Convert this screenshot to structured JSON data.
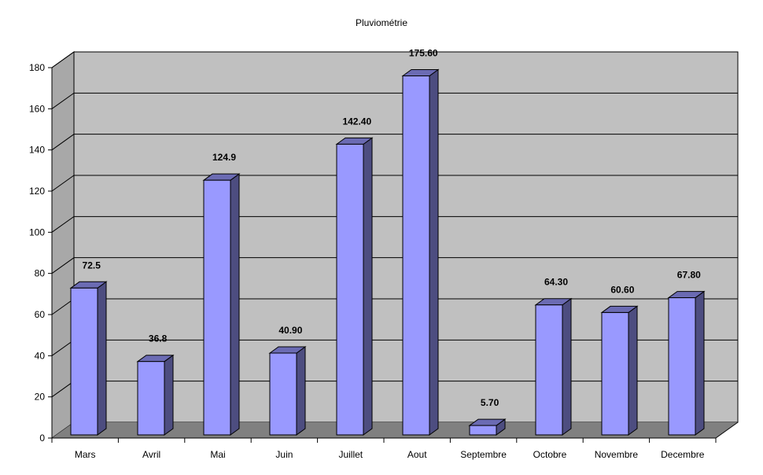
{
  "chart_data": {
    "type": "bar",
    "title": "Pluviométrie",
    "xlabel": "",
    "ylabel": "",
    "categories": [
      "Mars",
      "Avril",
      "Mai",
      "Juin",
      "Juillet",
      "Aout",
      "Septembre",
      "Octobre",
      "Novembre",
      "Decembre"
    ],
    "values": [
      72.5,
      36.8,
      124.9,
      40.9,
      142.4,
      175.6,
      5.7,
      64.3,
      60.6,
      67.8
    ],
    "data_labels": [
      "72.5",
      "36.8",
      "124.9",
      "40.90",
      "142.40",
      "175.60",
      "5.70",
      "64.30",
      "60.60",
      "67.80"
    ],
    "ylim": [
      0,
      180
    ],
    "yticks": [
      0,
      20,
      40,
      60,
      80,
      100,
      120,
      140,
      160,
      180
    ],
    "grid": true,
    "legend": "none",
    "style": "3d-column",
    "colors": {
      "bar_front": "#9999FF",
      "bar_side": "#4D4D80",
      "bar_top": "#6B6BB3",
      "wall": "#C0C0C0",
      "floor": "#808080",
      "grid": "#000000"
    }
  }
}
